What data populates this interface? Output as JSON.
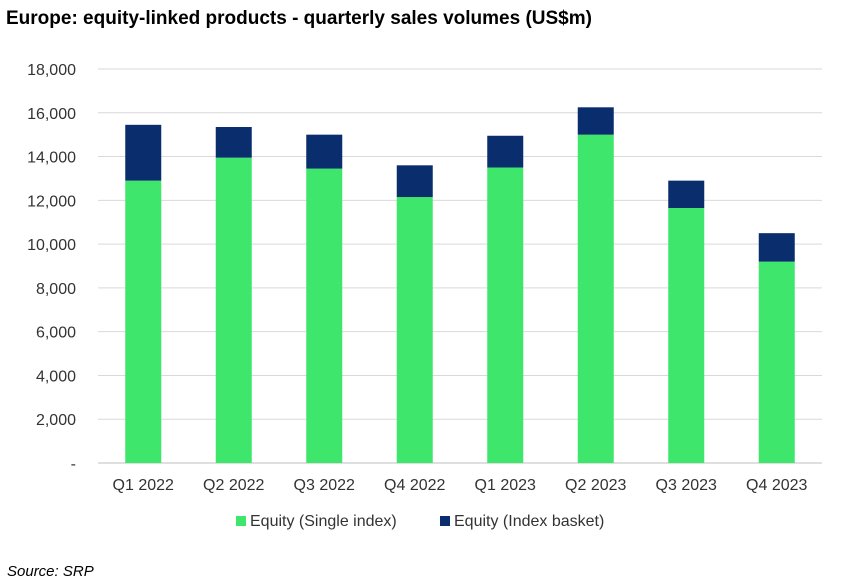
{
  "chart_data": {
    "type": "bar",
    "stacked": true,
    "title": "Europe: equity-linked products - quarterly sales volumes (US$m)",
    "categories": [
      "Q1 2022",
      "Q2 2022",
      "Q3 2022",
      "Q4 2022",
      "Q1 2023",
      "Q2 2023",
      "Q3 2023",
      "Q4 2023"
    ],
    "series": [
      {
        "name": "Equity (Single index)",
        "color": "#3ee66b",
        "values": [
          12900,
          13950,
          13450,
          12150,
          13500,
          15000,
          11650,
          9200
        ]
      },
      {
        "name": "Equity (Index basket)",
        "color": "#0a2d6e",
        "values": [
          2550,
          1400,
          1550,
          1450,
          1450,
          1250,
          1250,
          1300
        ]
      }
    ],
    "ylim": [
      0,
      18000
    ],
    "yticks": [
      0,
      2000,
      4000,
      6000,
      8000,
      10000,
      12000,
      14000,
      16000,
      18000
    ],
    "ytick_labels": [
      "-",
      "2,000",
      "4,000",
      "6,000",
      "8,000",
      "10,000",
      "12,000",
      "14,000",
      "16,000",
      "18,000"
    ],
    "grid": true,
    "legend_position": "bottom"
  },
  "source": "Source: SRP"
}
